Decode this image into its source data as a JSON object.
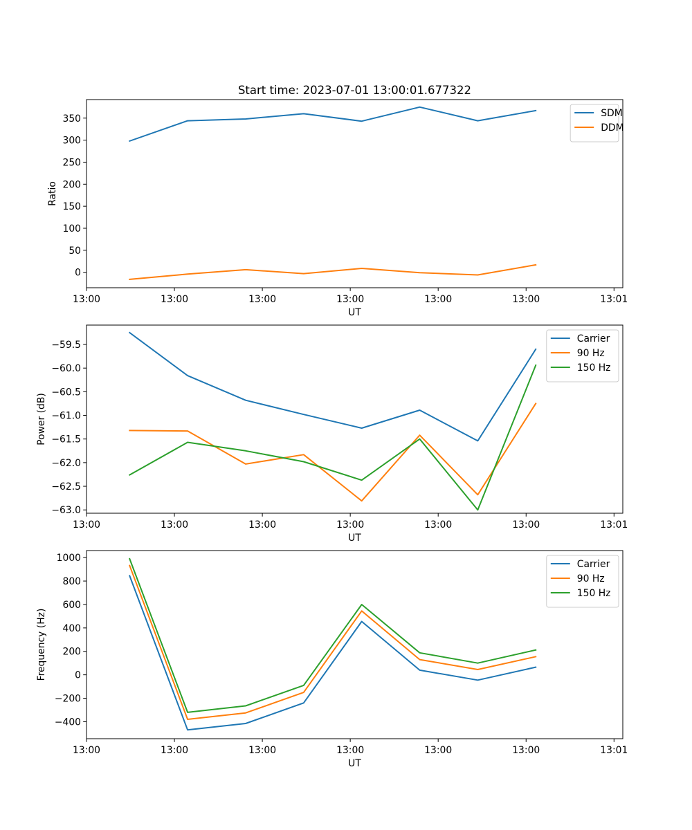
{
  "figure_title": "Start time: 2023-07-01 13:00:01.677322",
  "chart_data": [
    {
      "type": "line",
      "title": "Start time: 2023-07-01 13:00:01.677322",
      "xlabel": "UT",
      "ylabel": "Ratio",
      "xlim": [
        0,
        6.1
      ],
      "ylim": [
        -35,
        392
      ],
      "x": [
        0.49,
        1.15,
        1.81,
        2.47,
        3.13,
        3.79,
        4.45,
        5.11
      ],
      "xticks": [
        0,
        1,
        2,
        3,
        4,
        5,
        6
      ],
      "xtick_labels": [
        "13:00",
        "13:00",
        "13:00",
        "13:00",
        "13:00",
        "13:00",
        "13:01"
      ],
      "yticks": [
        0,
        50,
        100,
        150,
        200,
        250,
        300,
        350
      ],
      "ytick_labels": [
        "0",
        "50",
        "100",
        "150",
        "200",
        "250",
        "300",
        "350"
      ],
      "legend_position": "top-right",
      "series": [
        {
          "name": "SDM",
          "color": "#1f77b4",
          "values": [
            298,
            344,
            348,
            360,
            343,
            375,
            344,
            367
          ]
        },
        {
          "name": "DDM",
          "color": "#ff7f0e",
          "values": [
            -16,
            -4,
            6,
            -3,
            9,
            -1,
            -6,
            17
          ]
        }
      ]
    },
    {
      "type": "line",
      "title": "",
      "xlabel": "UT",
      "ylabel": "Power (dB)",
      "xlim": [
        0,
        6.1
      ],
      "ylim": [
        -63.07,
        -59.09
      ],
      "x": [
        0.49,
        1.15,
        1.81,
        2.47,
        3.13,
        3.79,
        4.45,
        5.11
      ],
      "xticks": [
        0,
        1,
        2,
        3,
        4,
        5,
        6
      ],
      "xtick_labels": [
        "13:00",
        "13:00",
        "13:00",
        "13:00",
        "13:00",
        "13:00",
        "13:01"
      ],
      "yticks": [
        -63.0,
        -62.5,
        -62.0,
        -61.5,
        -61.0,
        -60.5,
        -60.0,
        -59.5
      ],
      "ytick_labels": [
        "−63.0",
        "−62.5",
        "−62.0",
        "−61.5",
        "−61.0",
        "−60.5",
        "−60.0",
        "−59.5"
      ],
      "legend_position": "top-right",
      "series": [
        {
          "name": "Carrier",
          "color": "#1f77b4",
          "values": [
            -59.25,
            -60.16,
            -60.68,
            -60.98,
            -61.27,
            -60.89,
            -61.54,
            -59.6
          ]
        },
        {
          "name": "90 Hz",
          "color": "#ff7f0e",
          "values": [
            -61.32,
            -61.33,
            -62.03,
            -61.83,
            -62.81,
            -61.42,
            -62.68,
            -60.75
          ]
        },
        {
          "name": "150 Hz",
          "color": "#2ca02c",
          "values": [
            -62.26,
            -61.57,
            -61.75,
            -61.98,
            -62.37,
            -61.5,
            -63.0,
            -59.94
          ]
        }
      ]
    },
    {
      "type": "line",
      "title": "",
      "xlabel": "UT",
      "ylabel": "Frequency (Hz)",
      "xlim": [
        0,
        6.1
      ],
      "ylim": [
        -545,
        1060
      ],
      "x": [
        0.49,
        1.15,
        1.81,
        2.47,
        3.13,
        3.79,
        4.45,
        5.11
      ],
      "xticks": [
        0,
        1,
        2,
        3,
        4,
        5,
        6
      ],
      "xtick_labels": [
        "13:00",
        "13:00",
        "13:00",
        "13:00",
        "13:00",
        "13:00",
        "13:01"
      ],
      "yticks": [
        -400,
        -200,
        0,
        200,
        400,
        600,
        800,
        1000
      ],
      "ytick_labels": [
        "−400",
        "−200",
        "0",
        "200",
        "400",
        "600",
        "800",
        "1000"
      ],
      "legend_position": "top-right",
      "series": [
        {
          "name": "Carrier",
          "color": "#1f77b4",
          "values": [
            845,
            -470,
            -415,
            -240,
            455,
            40,
            -45,
            65
          ]
        },
        {
          "name": "90 Hz",
          "color": "#ff7f0e",
          "values": [
            932,
            -380,
            -325,
            -150,
            545,
            130,
            45,
            155
          ]
        },
        {
          "name": "150 Hz",
          "color": "#2ca02c",
          "values": [
            990,
            -320,
            -265,
            -90,
            600,
            188,
            100,
            212
          ]
        }
      ]
    }
  ]
}
